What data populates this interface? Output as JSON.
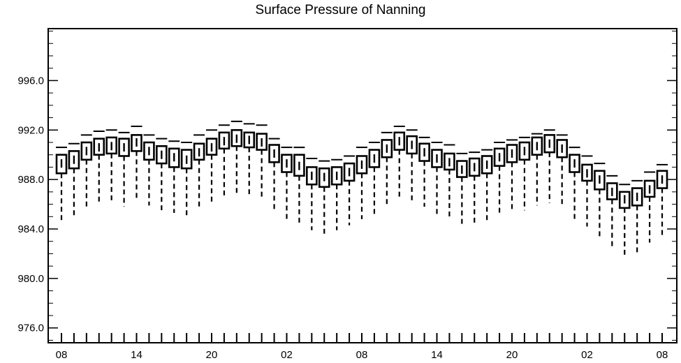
{
  "chart_data": {
    "type": "boxplot",
    "title": "Surface Pressure of Nanning",
    "xlabel": "",
    "ylabel": "",
    "ylim": [
      974.8,
      1000.2
    ],
    "y_ticks": [
      "976.0",
      "980.0",
      "984.0",
      "988.0",
      "992.0",
      "996.0"
    ],
    "y_tick_values": [
      976,
      980,
      984,
      988,
      992,
      996
    ],
    "x_tick_labels": [
      "08",
      "14",
      "20",
      "02",
      "08",
      "14",
      "20",
      "02",
      "08"
    ],
    "x_tick_indices": [
      0,
      6,
      12,
      18,
      24,
      30,
      36,
      42,
      48
    ],
    "grid": false,
    "legend": "none",
    "series": [
      {
        "q1": [
          988.5,
          988.9,
          989.6,
          990.0,
          990.1,
          989.9,
          990.3,
          989.6,
          989.3,
          989.0,
          988.9,
          989.6,
          990.0,
          990.5,
          990.7,
          990.6,
          990.4,
          989.4,
          988.6,
          988.3,
          987.6,
          987.4,
          987.6,
          987.9,
          988.5,
          989.0,
          989.8,
          990.4,
          990.1,
          989.5,
          989.0,
          988.8,
          988.2,
          988.3,
          988.5,
          989.1,
          989.4,
          989.6,
          990.0,
          990.2,
          989.8,
          988.6,
          987.9,
          987.2,
          986.4,
          985.7,
          985.9,
          986.6,
          987.3
        ],
        "q3": [
          990.0,
          990.3,
          991.0,
          991.3,
          991.4,
          991.3,
          991.6,
          991.0,
          990.7,
          990.5,
          990.4,
          990.9,
          991.3,
          991.8,
          992.0,
          991.8,
          991.7,
          990.8,
          990.0,
          990.0,
          989.0,
          988.9,
          989.0,
          989.3,
          989.9,
          990.4,
          991.2,
          991.8,
          991.5,
          990.9,
          990.4,
          990.1,
          989.5,
          989.7,
          989.9,
          990.5,
          990.8,
          991.0,
          991.4,
          991.6,
          991.2,
          990.0,
          989.2,
          988.7,
          987.7,
          987.0,
          987.3,
          987.9,
          988.7
        ],
        "median": [
          989.3,
          989.6,
          990.3,
          990.6,
          990.7,
          990.6,
          991.0,
          990.3,
          990.0,
          989.8,
          989.6,
          990.2,
          990.6,
          991.1,
          991.3,
          991.2,
          991.0,
          990.1,
          989.3,
          989.1,
          988.3,
          988.2,
          988.3,
          988.6,
          989.2,
          989.7,
          990.5,
          991.1,
          990.8,
          990.2,
          989.7,
          989.4,
          988.8,
          989.0,
          989.2,
          989.8,
          990.1,
          990.3,
          990.7,
          990.9,
          990.5,
          989.3,
          988.5,
          988.0,
          987.0,
          986.4,
          986.6,
          987.2,
          988.0
        ],
        "upper": [
          990.6,
          990.9,
          991.6,
          991.9,
          992.0,
          991.8,
          992.3,
          991.6,
          991.3,
          991.1,
          991.0,
          991.6,
          992.0,
          992.4,
          992.7,
          992.5,
          992.4,
          991.3,
          990.6,
          990.6,
          989.7,
          989.5,
          989.6,
          989.9,
          990.6,
          991.0,
          991.8,
          992.3,
          992.0,
          991.4,
          991.0,
          990.8,
          990.1,
          990.2,
          990.4,
          991.0,
          991.2,
          991.4,
          991.7,
          992.0,
          991.6,
          990.6,
          989.9,
          989.3,
          988.3,
          987.6,
          987.9,
          988.6,
          989.2
        ],
        "lower": [
          984.6,
          985.1,
          985.7,
          986.1,
          986.2,
          985.8,
          986.3,
          985.9,
          985.5,
          985.3,
          985.1,
          985.7,
          986.0,
          986.5,
          986.8,
          986.7,
          986.5,
          985.5,
          984.8,
          984.4,
          983.9,
          983.4,
          983.9,
          984.3,
          984.8,
          985.2,
          986.0,
          986.5,
          986.3,
          985.8,
          985.2,
          985.0,
          984.3,
          984.4,
          984.5,
          985.1,
          985.4,
          985.5,
          985.9,
          986.1,
          985.8,
          984.8,
          984.2,
          983.4,
          982.6,
          981.9,
          982.1,
          982.9,
          983.4
        ]
      }
    ]
  }
}
